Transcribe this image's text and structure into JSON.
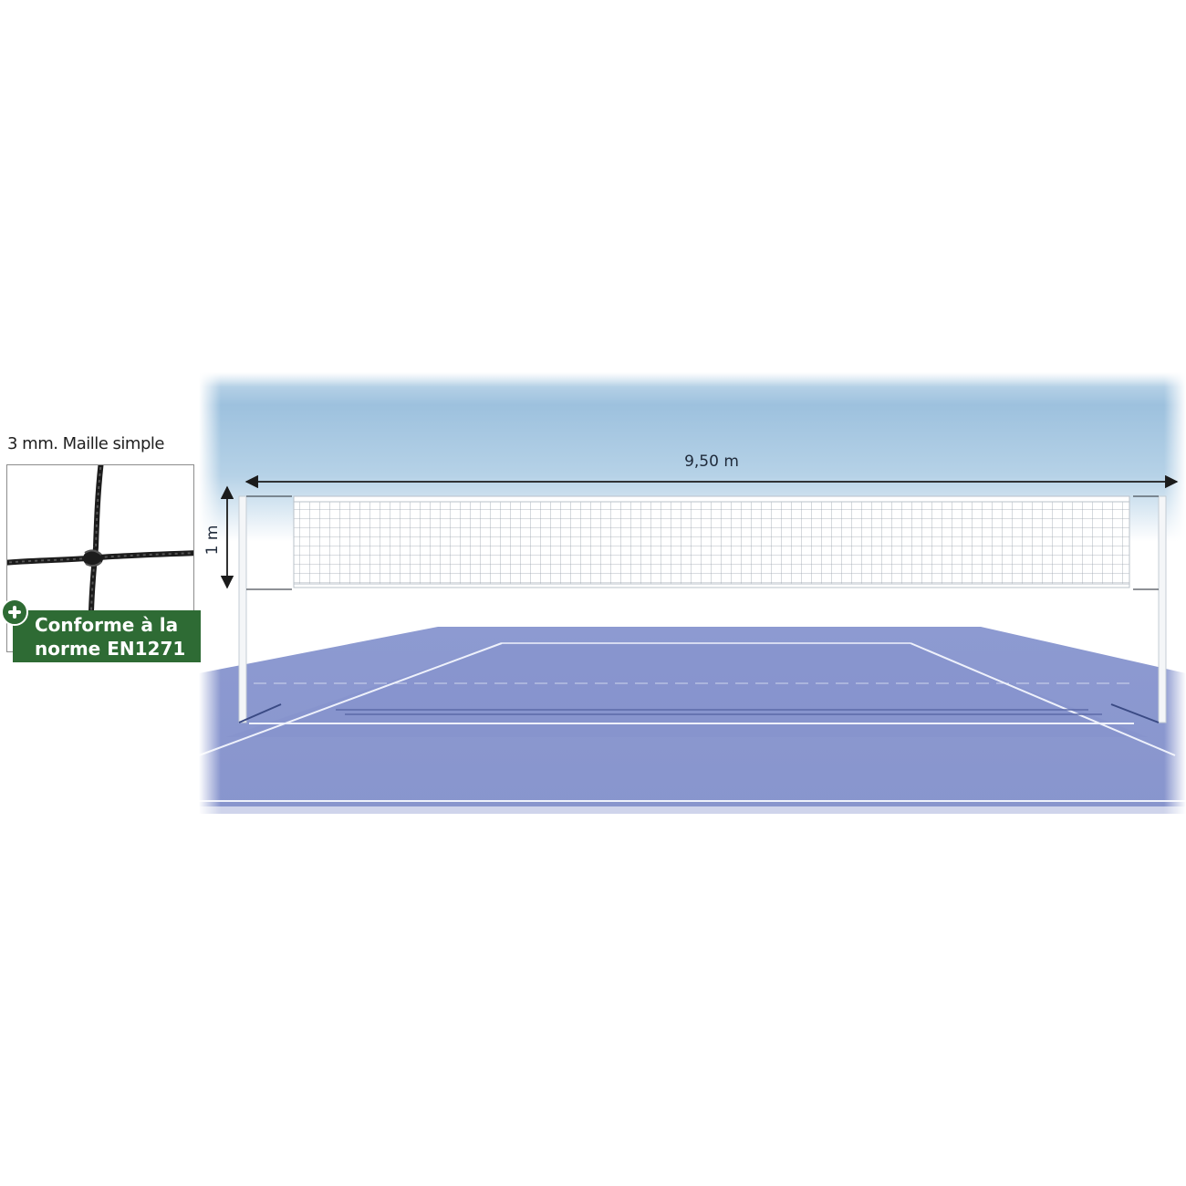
{
  "mesh_sample": {
    "caption": "3 mm. Maille simple"
  },
  "norm_badge": {
    "line1": "Conforme à la",
    "line2": "norme EN1271",
    "icon": "plus-icon",
    "color": "#2e6b34"
  },
  "net_dimensions": {
    "width_label": "9,50 m",
    "height_label": "1 m"
  },
  "colors": {
    "sky": "#9ec3de",
    "court": "#8e9bd2",
    "cord": "#1c1c1c"
  }
}
